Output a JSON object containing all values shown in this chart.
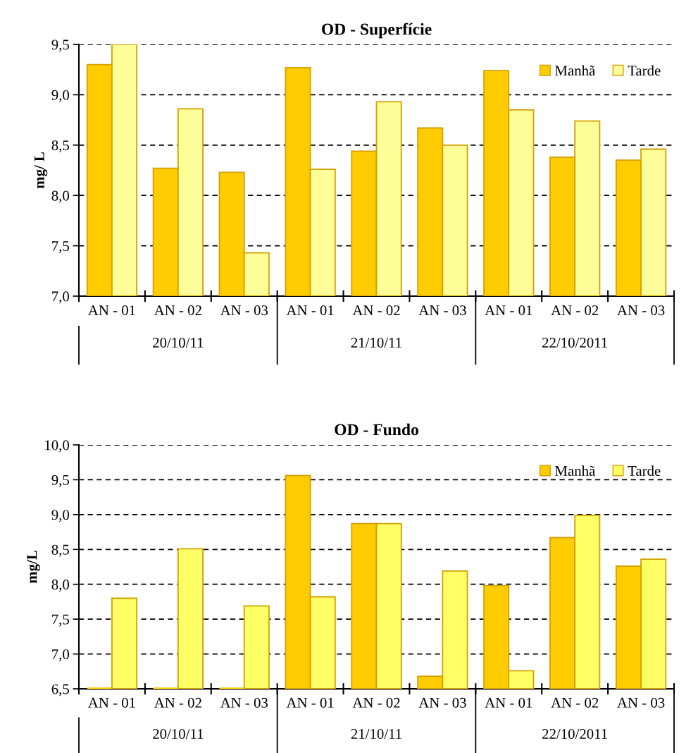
{
  "chart_data": [
    {
      "type": "bar",
      "title": "OD - Superfície",
      "ylabel": "mg/ L",
      "categories": [
        "AN - 01",
        "AN - 02",
        "AN - 03",
        "AN - 01",
        "AN - 02",
        "AN - 03",
        "AN - 01",
        "AN - 02",
        "AN - 03"
      ],
      "annotations": [
        "20/10/11",
        "21/10/11",
        "22/10/2011"
      ],
      "series": [
        {
          "name": "Manhã",
          "color": "#ffcc00",
          "values": [
            9.3,
            8.27,
            8.23,
            9.27,
            8.44,
            8.67,
            9.24,
            8.38,
            8.35
          ]
        },
        {
          "name": "Tarde",
          "color": "#ffff99",
          "values": [
            9.5,
            8.86,
            7.43,
            8.26,
            8.93,
            8.5,
            8.85,
            8.74,
            8.46
          ]
        }
      ],
      "ylim": [
        7.0,
        9.5
      ],
      "yticks": [
        {
          "value": 7.0,
          "label": "7,0"
        },
        {
          "value": 7.5,
          "label": "7,5"
        },
        {
          "value": 8.0,
          "label": "8,0"
        },
        {
          "value": 8.5,
          "label": "8,5"
        },
        {
          "value": 9.0,
          "label": "9,0"
        },
        {
          "value": 9.5,
          "label": "9,5"
        }
      ],
      "grid": "y",
      "legend": "top right"
    },
    {
      "type": "bar",
      "title": "OD - Fundo",
      "ylabel": "mg/L",
      "categories": [
        "AN - 01",
        "AN - 02",
        "AN - 03",
        "AN - 01",
        "AN - 02",
        "AN - 03",
        "AN - 01",
        "AN - 02",
        "AN - 03"
      ],
      "annotations": [
        "20/10/11",
        "21/10/11",
        "22/10/2011"
      ],
      "series": [
        {
          "name": "Manhã",
          "color": "#ffcc00",
          "values": [
            6.5,
            6.5,
            6.5,
            9.56,
            8.87,
            6.68,
            7.98,
            8.67,
            8.26
          ]
        },
        {
          "name": "Tarde",
          "color": "#ffff66",
          "values": [
            7.8,
            8.51,
            7.69,
            7.82,
            8.87,
            8.19,
            6.76,
            8.99,
            8.36
          ]
        }
      ],
      "ylim": [
        6.5,
        10.0
      ],
      "yticks": [
        {
          "value": 6.5,
          "label": "6,5"
        },
        {
          "value": 7.0,
          "label": "7,0"
        },
        {
          "value": 7.5,
          "label": "7,5"
        },
        {
          "value": 8.0,
          "label": "8,0"
        },
        {
          "value": 8.5,
          "label": "8,5"
        },
        {
          "value": 9.0,
          "label": "9,0"
        },
        {
          "value": 9.5,
          "label": "9,5"
        },
        {
          "value": 10.0,
          "label": "10,0"
        }
      ],
      "grid": "y",
      "legend": "top right"
    }
  ]
}
